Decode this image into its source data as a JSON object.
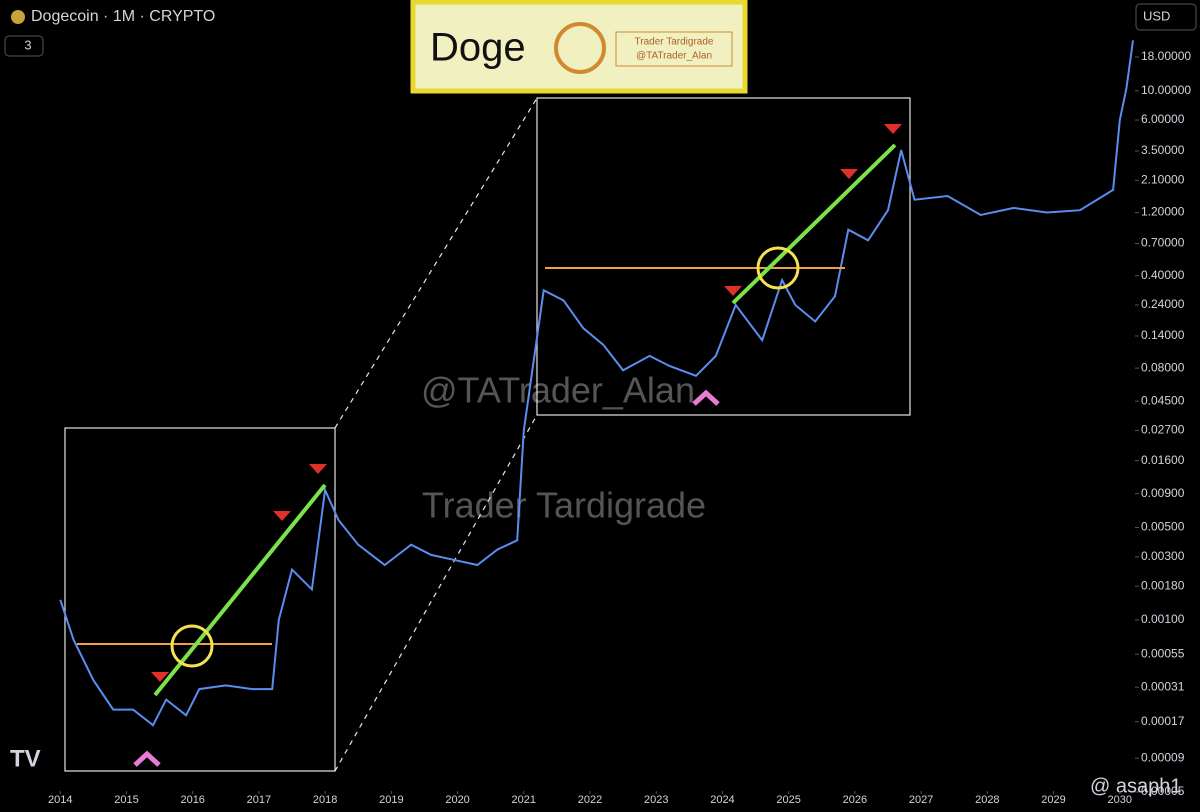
{
  "chart_data": {
    "type": "line",
    "title": "Dogecoin · 1M · CRYPTO",
    "badge": "3",
    "currency": "USD",
    "logo": {
      "title": "Doge",
      "author": "Trader Tardigrade",
      "handle": "@TATrader_Alan"
    },
    "watermarks": [
      "@TATrader_Alan",
      "Trader Tardigrade"
    ],
    "credit": "@ asaph1",
    "color": "#5b8def",
    "yscale": "log",
    "x": [
      2014.0,
      2014.2,
      2014.5,
      2014.8,
      2015.1,
      2015.4,
      2015.6,
      2015.9,
      2016.1,
      2016.5,
      2016.9,
      2017.2,
      2017.3,
      2017.5,
      2017.8,
      2018.0,
      2018.2,
      2018.5,
      2018.9,
      2019.3,
      2019.6,
      2020.0,
      2020.3,
      2020.6,
      2020.9,
      2021.0,
      2021.3,
      2021.6,
      2021.9,
      2022.2,
      2022.5,
      2022.9,
      2023.2,
      2023.6,
      2023.9,
      2024.2,
      2024.6,
      2024.9,
      2025.1,
      2025.4,
      2025.7,
      2025.9,
      2026.2,
      2026.5,
      2026.7,
      2026.9,
      2027.4,
      2027.9,
      2028.4,
      2028.9,
      2029.4,
      2029.9,
      2030.0,
      2030.1,
      2030.2
    ],
    "values": [
      0.00142,
      0.00071,
      0.00035,
      0.00021,
      0.00021,
      0.00016,
      0.00025,
      0.00019,
      0.0003,
      0.00032,
      0.0003,
      0.0003,
      0.001,
      0.0024,
      0.0017,
      0.0096,
      0.0057,
      0.0037,
      0.0026,
      0.0037,
      0.0031,
      0.0028,
      0.0026,
      0.0034,
      0.004,
      0.027,
      0.31,
      0.26,
      0.16,
      0.12,
      0.077,
      0.099,
      0.083,
      0.07,
      0.099,
      0.24,
      0.13,
      0.37,
      0.24,
      0.18,
      0.28,
      0.89,
      0.74,
      1.25,
      3.56,
      1.5,
      1.6,
      1.15,
      1.3,
      1.2,
      1.25,
      1.78,
      6.0,
      10.4,
      24
    ],
    "xlim": [
      2013.09,
      2030.23
    ],
    "xticks": [
      2014,
      2015,
      2016,
      2017,
      2018,
      2019,
      2020,
      2021,
      2022,
      2023,
      2024,
      2025,
      2026,
      2027,
      2028,
      2029,
      2030
    ],
    "ylim": [
      5.65e-05,
      48.5
    ],
    "yticks": [
      {
        "value": 18,
        "label": "18.00000"
      },
      {
        "value": 10,
        "label": "10.00000"
      },
      {
        "value": 6,
        "label": "6.00000"
      },
      {
        "value": 3.5,
        "label": "3.50000"
      },
      {
        "value": 2.1,
        "label": "2.10000"
      },
      {
        "value": 1.2,
        "label": "1.20000"
      },
      {
        "value": 0.7,
        "label": "0.70000"
      },
      {
        "value": 0.4,
        "label": "0.40000"
      },
      {
        "value": 0.24,
        "label": "0.24000"
      },
      {
        "value": 0.14,
        "label": "0.14000"
      },
      {
        "value": 0.08,
        "label": "0.08000"
      },
      {
        "value": 0.045,
        "label": "0.04500"
      },
      {
        "value": 0.027,
        "label": "0.02700"
      },
      {
        "value": 0.016,
        "label": "0.01600"
      },
      {
        "value": 0.009,
        "label": "0.00900"
      },
      {
        "value": 0.005,
        "label": "0.00500"
      },
      {
        "value": 0.003,
        "label": "0.00300"
      },
      {
        "value": 0.0018,
        "label": "0.00180"
      },
      {
        "value": 0.001,
        "label": "0.00100"
      },
      {
        "value": 0.00055,
        "label": "0.00055"
      },
      {
        "value": 0.00031,
        "label": "0.00031"
      },
      {
        "value": 0.00017,
        "label": "0.00017"
      },
      {
        "value": 9e-05,
        "label": "0.00009"
      },
      {
        "value": 5e-05,
        "label": "0.00005"
      }
    ]
  }
}
